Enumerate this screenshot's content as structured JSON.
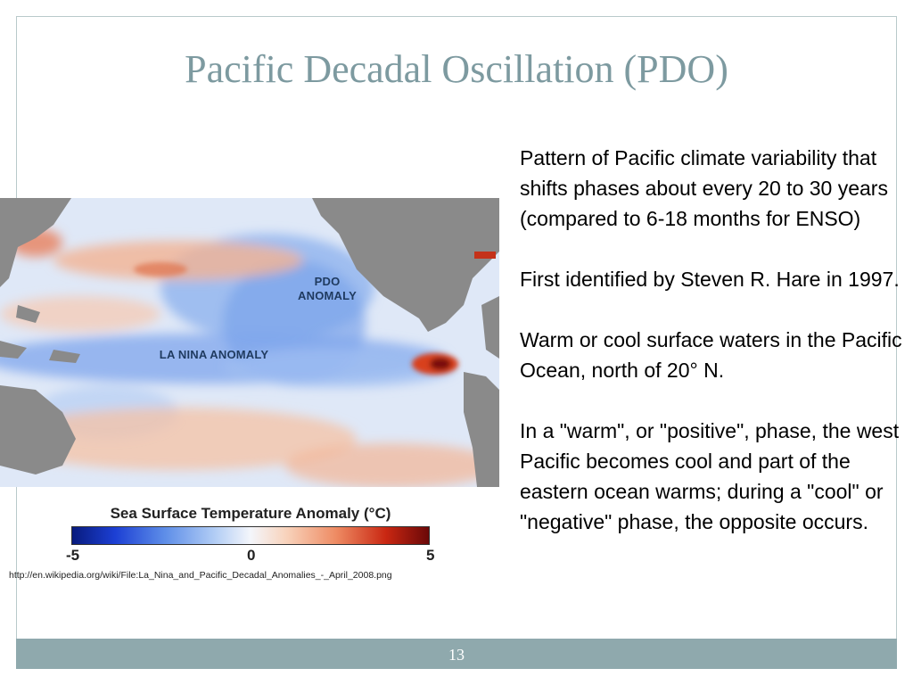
{
  "slide": {
    "title": "Pacific Decadal Oscillation (PDO)",
    "page_number": "13"
  },
  "figure": {
    "label_pdo_line1": "PDO",
    "label_pdo_line2": "ANOMALY",
    "label_lanina": "LA NINA ANOMALY",
    "scale_title": "Sea Surface Temperature Anomaly (°C)",
    "scale_min": "-5",
    "scale_mid": "0",
    "scale_max": "5",
    "source_url": "http://en.wikipedia.org/wiki/File:La_Nina_and_Pacific_Decadal_Anomalies_-_April_2008.png",
    "colors": {
      "cold": "#081b7d",
      "neutral": "#f4f6fb",
      "warm": "#6a0808",
      "land": "#8a8a8a"
    }
  },
  "body": {
    "paragraphs": [
      "Pattern of Pacific climate variability that shifts phases about every 20 to 30 years (compared to 6-18 months for ENSO)",
      "First identified by Steven R. Hare in 1997.",
      "Warm or cool surface waters in the Pacific Ocean, north of 20° N.",
      "In a \"warm\", or \"positive\", phase, the west Pacific becomes cool and part of the eastern ocean warms; during a \"cool\" or \"negative\" phase, the opposite occurs."
    ]
  }
}
